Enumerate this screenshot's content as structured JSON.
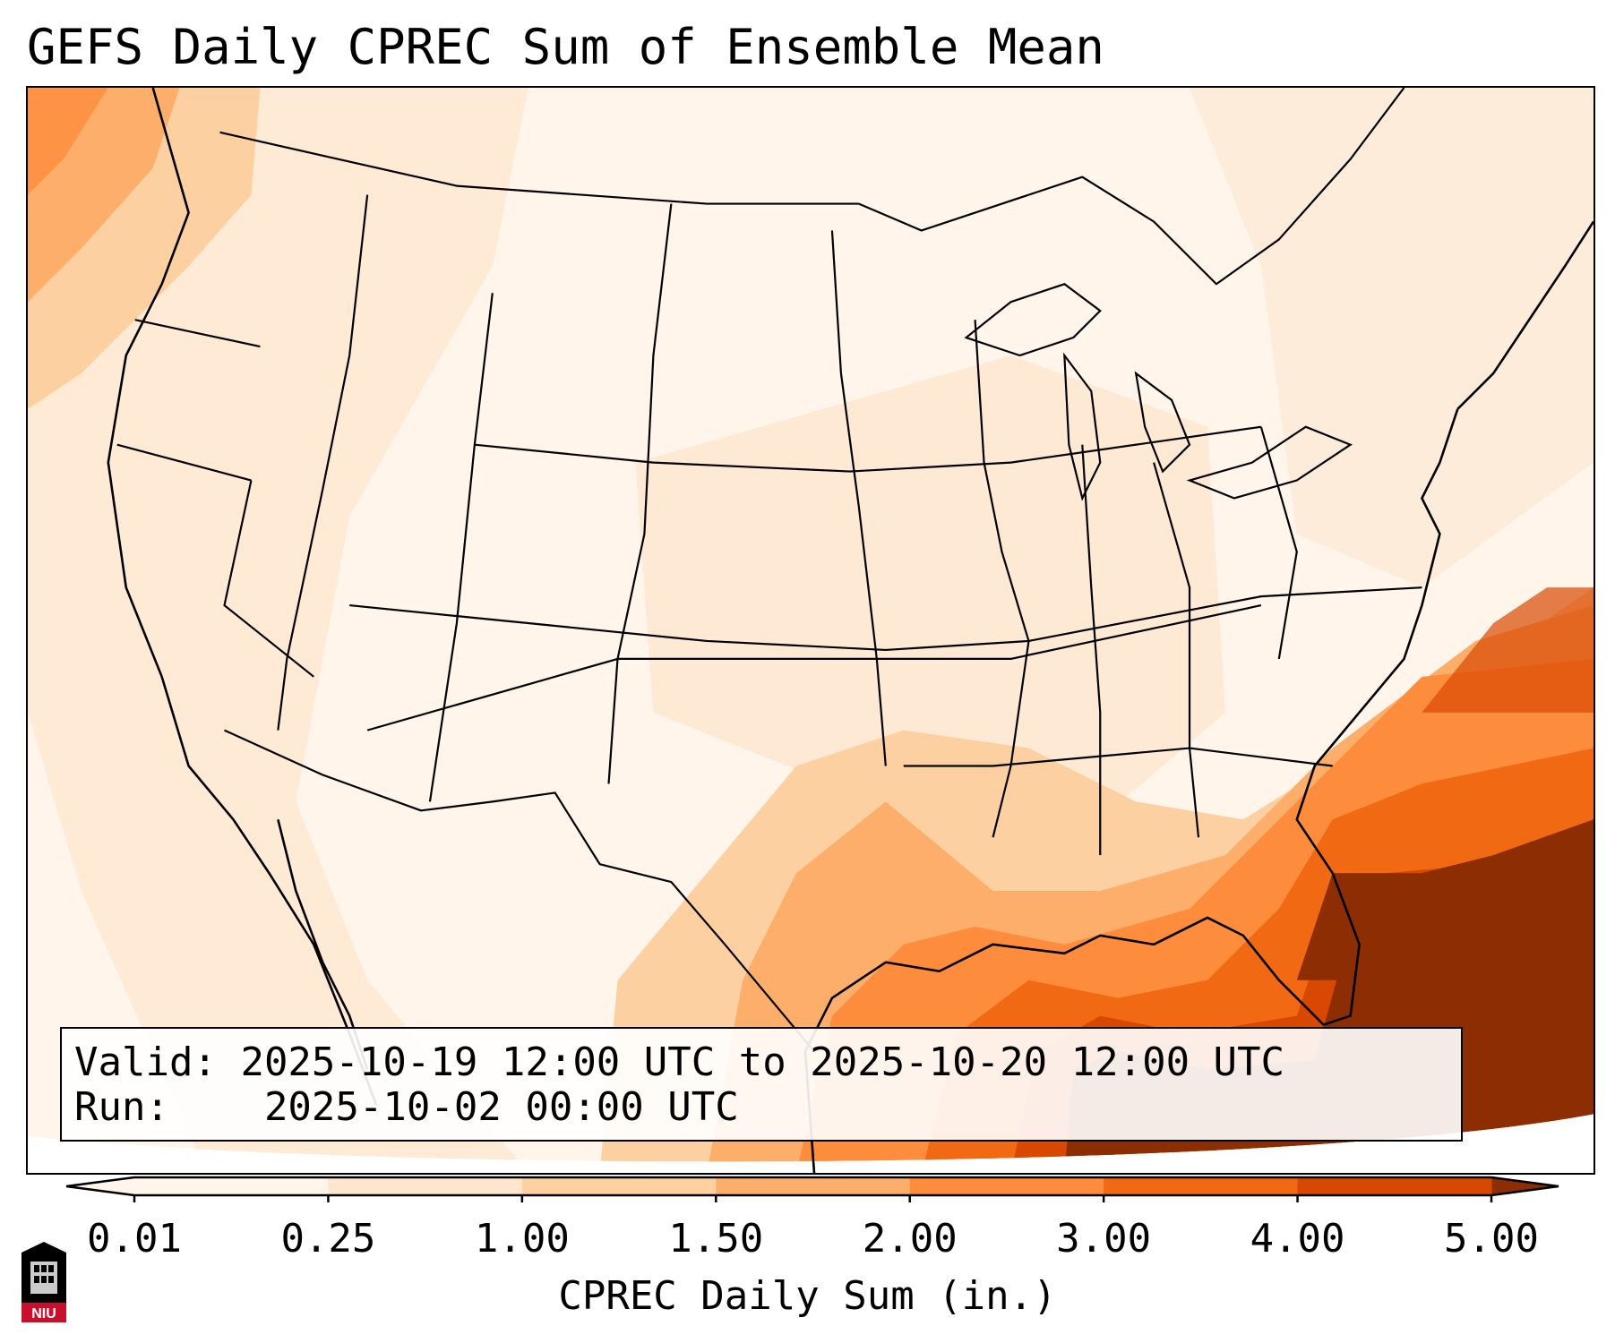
{
  "title": "GEFS Daily CPREC Sum of Ensemble Mean",
  "info": {
    "valid_label": "Valid:",
    "valid_text": "2025-10-19 12:00 UTC to 2025-10-20 12:00 UTC",
    "run_label": "Run:",
    "run_text": "2025-10-02 00:00 UTC"
  },
  "colorbar": {
    "label": "CPREC Daily Sum (in.)",
    "ticks": [
      "0.01",
      "0.25",
      "1.00",
      "1.50",
      "2.00",
      "3.00",
      "4.00",
      "5.00"
    ],
    "colors": [
      "#fff5eb",
      "#fee6ce",
      "#fdd0a2",
      "#fdae6b",
      "#fd8d3c",
      "#f16913",
      "#d94801",
      "#8c2d04"
    ],
    "extend": "both"
  },
  "map": {
    "projection": "Lambert conformal, CONUS",
    "colors": {
      "land_background": "#fff5eb",
      "light": "#fee6ce",
      "moderate": "#fdd0a2",
      "heavy": "#fdae6b",
      "very_heavy": "#fd8d3c",
      "intense": "#f16913",
      "extreme": "#d94801",
      "max": "#8c2d04"
    },
    "regions": [
      {
        "name": "Pacific Northwest coast",
        "level": "very_heavy"
      },
      {
        "name": "Western Gulf / Texas coast",
        "level": "intense"
      },
      {
        "name": "Eastern Gulf of Mexico",
        "level": "max"
      },
      {
        "name": "Florida / Southeast Atlantic",
        "level": "max"
      },
      {
        "name": "Western Atlantic offshore",
        "level": "intense"
      }
    ]
  },
  "logo": {
    "text": "NIU",
    "icon": "university-tower-icon"
  }
}
